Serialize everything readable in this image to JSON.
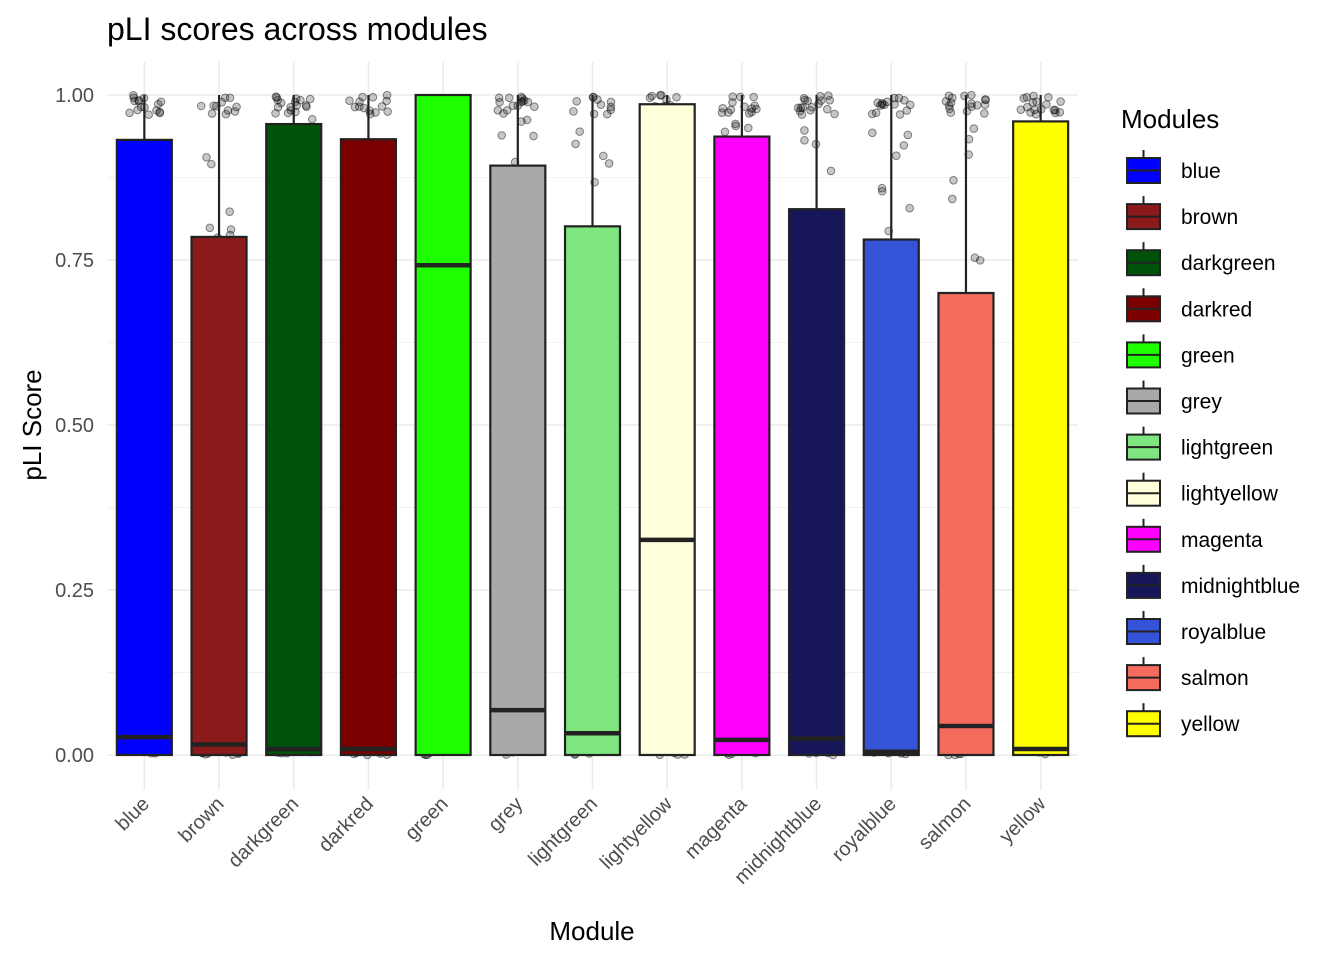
{
  "chart_data": {
    "type": "box",
    "title": "pLI scores across modules",
    "xlabel": "Module",
    "ylabel": "pLI Score",
    "ylim": [
      -0.04,
      1.05
    ],
    "yticks": [
      0.0,
      0.25,
      0.5,
      0.75,
      1.0
    ],
    "ytick_labels": [
      "0.00",
      "0.25",
      "0.50",
      "0.75",
      "1.00"
    ],
    "grid": true,
    "legend": {
      "title": "Modules",
      "position": "right"
    },
    "jitter_points": true,
    "series": [
      {
        "name": "blue",
        "color": "#0000FF",
        "q1": 0.0,
        "median": 0.027,
        "q3": 0.932,
        "whisker_low": 0.0,
        "whisker_high": 1.0
      },
      {
        "name": "brown",
        "color": "#8B1A1A",
        "q1": 0.0,
        "median": 0.016,
        "q3": 0.785,
        "whisker_low": 0.0,
        "whisker_high": 1.0
      },
      {
        "name": "darkgreen",
        "color": "#00520B",
        "q1": 0.0,
        "median": 0.009,
        "q3": 0.956,
        "whisker_low": 0.0,
        "whisker_high": 1.0
      },
      {
        "name": "darkred",
        "color": "#7A0000",
        "q1": 0.0,
        "median": 0.009,
        "q3": 0.933,
        "whisker_low": 0.0,
        "whisker_high": 1.0
      },
      {
        "name": "green",
        "color": "#1EFF00",
        "q1": 0.0,
        "median": 0.742,
        "q3": 1.0,
        "whisker_low": 0.0,
        "whisker_high": 1.0
      },
      {
        "name": "grey",
        "color": "#A9A9A9",
        "q1": 0.0,
        "median": 0.068,
        "q3": 0.893,
        "whisker_low": 0.0,
        "whisker_high": 1.0
      },
      {
        "name": "lightgreen",
        "color": "#7FE57F",
        "q1": 0.0,
        "median": 0.033,
        "q3": 0.801,
        "whisker_low": 0.0,
        "whisker_high": 1.0
      },
      {
        "name": "lightyellow",
        "color": "#FFFFDB",
        "q1": 0.0,
        "median": 0.326,
        "q3": 0.986,
        "whisker_low": 0.0,
        "whisker_high": 1.0
      },
      {
        "name": "magenta",
        "color": "#FF00FF",
        "q1": 0.0,
        "median": 0.023,
        "q3": 0.937,
        "whisker_low": 0.0,
        "whisker_high": 1.0
      },
      {
        "name": "midnightblue",
        "color": "#161659",
        "q1": 0.0,
        "median": 0.025,
        "q3": 0.827,
        "whisker_low": 0.0,
        "whisker_high": 1.0
      },
      {
        "name": "royalblue",
        "color": "#3553D6",
        "q1": 0.0,
        "median": 0.005,
        "q3": 0.781,
        "whisker_low": 0.0,
        "whisker_high": 1.0
      },
      {
        "name": "salmon",
        "color": "#F56C5C",
        "q1": 0.0,
        "median": 0.044,
        "q3": 0.7,
        "whisker_low": 0.0,
        "whisker_high": 1.0
      },
      {
        "name": "yellow",
        "color": "#FFFF00",
        "q1": 0.0,
        "median": 0.009,
        "q3": 0.96,
        "whisker_low": 0.0,
        "whisker_high": 1.0
      }
    ]
  }
}
